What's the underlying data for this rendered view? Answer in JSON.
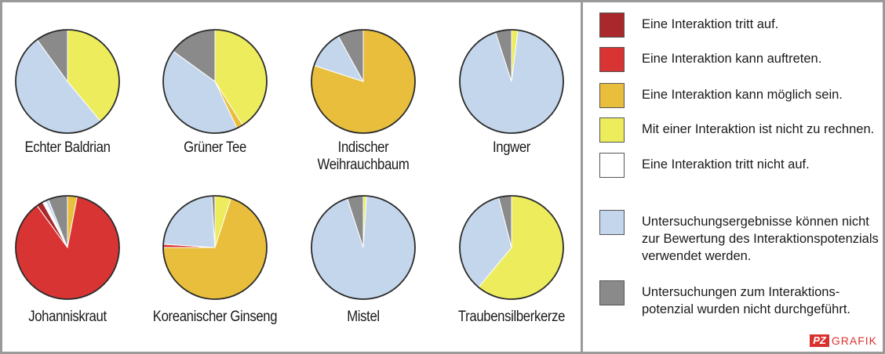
{
  "colors": {
    "tritt_auf": "#a8282c",
    "kann_auftreten": "#d83434",
    "moeglich": "#e8be3c",
    "nicht_zu_rechnen": "#ecec5c",
    "tritt_nicht_auf": "#ffffff",
    "nicht_bewertbar": "#c4d6ec",
    "nicht_durchgefuehrt": "#8a8a8a"
  },
  "legend": [
    {
      "key": "tritt_auf",
      "label": "Eine Interaktion tritt auf."
    },
    {
      "key": "kann_auftreten",
      "label": "Eine Interaktion kann auftreten."
    },
    {
      "key": "moeglich",
      "label": "Eine Interaktion kann möglich sein."
    },
    {
      "key": "nicht_zu_rechnen",
      "label": "Mit einer Interaktion ist nicht zu rechnen."
    },
    {
      "key": "tritt_nicht_auf",
      "label": "Eine Interaktion tritt nicht auf."
    },
    {
      "key": "nicht_bewertbar",
      "label": "Untersuchungsergebnisse können nicht\nzur Bewertung des Interaktionspotenzials\nverwendet werden."
    },
    {
      "key": "nicht_durchgefuehrt",
      "label": "Untersuchungen zum Interaktions-\npotenzial wurden nicht durchgeführt."
    }
  ],
  "brand": {
    "box": "PZ",
    "text": "GRAFIK"
  },
  "chart_data": [
    {
      "type": "pie",
      "title": "Echter Baldrian",
      "slices": [
        {
          "category": "nicht_zu_rechnen",
          "value": 39
        },
        {
          "category": "nicht_bewertbar",
          "value": 51
        },
        {
          "category": "nicht_durchgefuehrt",
          "value": 10
        }
      ]
    },
    {
      "type": "pie",
      "title": "Grüner Tee",
      "slices": [
        {
          "category": "nicht_zu_rechnen",
          "value": 41
        },
        {
          "category": "moeglich",
          "value": 2
        },
        {
          "category": "nicht_bewertbar",
          "value": 42
        },
        {
          "category": "nicht_durchgefuehrt",
          "value": 15
        }
      ]
    },
    {
      "type": "pie",
      "title": "Indischer Weihrauchbaum",
      "slices": [
        {
          "category": "moeglich",
          "value": 80
        },
        {
          "category": "nicht_bewertbar",
          "value": 12
        },
        {
          "category": "nicht_durchgefuehrt",
          "value": 8
        }
      ]
    },
    {
      "type": "pie",
      "title": "Ingwer",
      "slices": [
        {
          "category": "nicht_zu_rechnen",
          "value": 2
        },
        {
          "category": "nicht_bewertbar",
          "value": 93
        },
        {
          "category": "nicht_durchgefuehrt",
          "value": 5
        }
      ]
    },
    {
      "type": "pie",
      "title": "Johanniskraut",
      "slices": [
        {
          "category": "moeglich",
          "value": 3
        },
        {
          "category": "kann_auftreten",
          "value": 87
        },
        {
          "category": "tritt_auf",
          "value": 2
        },
        {
          "category": "tritt_nicht_auf",
          "value": 1
        },
        {
          "category": "nicht_bewertbar",
          "value": 1
        },
        {
          "category": "nicht_durchgefuehrt",
          "value": 6
        }
      ]
    },
    {
      "type": "pie",
      "title": "Koreanischer Ginseng",
      "slices": [
        {
          "category": "nicht_zu_rechnen",
          "value": 5
        },
        {
          "category": "moeglich",
          "value": 70
        },
        {
          "category": "kann_auftreten",
          "value": 1
        },
        {
          "category": "nicht_bewertbar",
          "value": 23
        },
        {
          "category": "nicht_durchgefuehrt",
          "value": 1
        }
      ]
    },
    {
      "type": "pie",
      "title": "Mistel",
      "slices": [
        {
          "category": "nicht_zu_rechnen",
          "value": 1
        },
        {
          "category": "nicht_bewertbar",
          "value": 94
        },
        {
          "category": "nicht_durchgefuehrt",
          "value": 5
        }
      ]
    },
    {
      "type": "pie",
      "title": "Traubensilberkerze",
      "slices": [
        {
          "category": "nicht_zu_rechnen",
          "value": 61
        },
        {
          "category": "nicht_bewertbar",
          "value": 35
        },
        {
          "category": "nicht_durchgefuehrt",
          "value": 4
        }
      ]
    }
  ]
}
